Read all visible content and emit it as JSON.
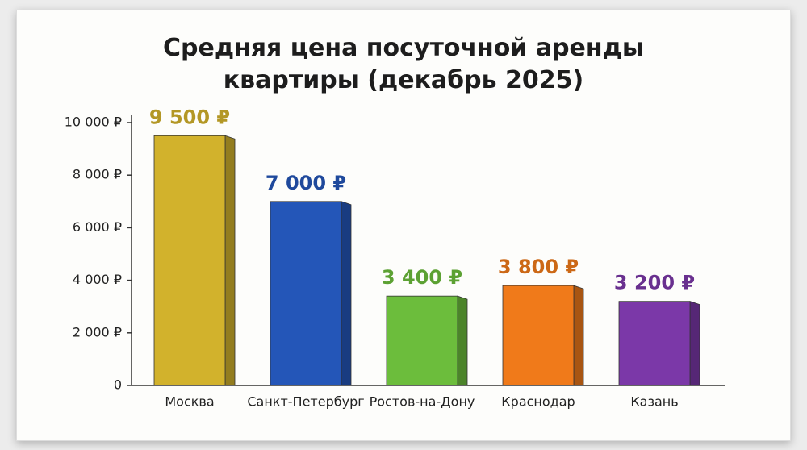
{
  "chart_data": {
    "type": "bar",
    "title": "Средняя цена посуточной аренды квартиры (декабрь 2025)",
    "categories": [
      "Москва",
      "Санкт-Петербург",
      "Ростов-на-Дону",
      "Краснодар",
      "Казань"
    ],
    "values": [
      9500,
      7000,
      3400,
      3800,
      3200
    ],
    "value_labels": [
      "9 500 ₽",
      "7 000 ₽",
      "3 400 ₽",
      "3 800 ₽",
      "3 200 ₽"
    ],
    "colors": [
      "#d2b22c",
      "#2456b8",
      "#6cbd3c",
      "#f07a1a",
      "#7b38a8"
    ],
    "ylim": [
      0,
      10000
    ],
    "yticks": [
      0,
      {
        "value": 2000,
        "label": "2 000 ₽"
      },
      {
        "value": 4000,
        "label": "4 000 ₽"
      },
      {
        "value": 6000,
        "label": "6 000 ₽"
      },
      {
        "value": 8000,
        "label": "8 000 ₽"
      },
      {
        "value": 10000,
        "label": "10 000 ₽"
      }
    ]
  }
}
